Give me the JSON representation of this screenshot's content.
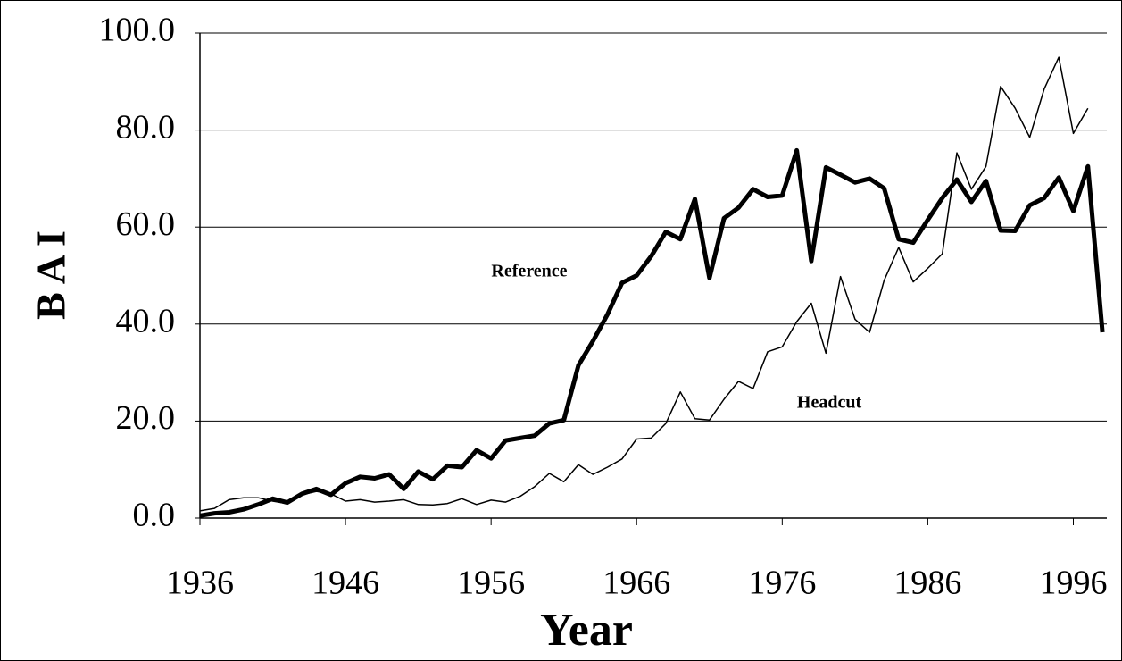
{
  "chart_data": {
    "type": "line",
    "x_label": "Year",
    "y_label": "B A I",
    "annotations": [
      "Reference",
      "Headcut"
    ],
    "x": [
      1936,
      1937,
      1938,
      1939,
      1940,
      1941,
      1942,
      1943,
      1944,
      1945,
      1946,
      1947,
      1948,
      1949,
      1950,
      1951,
      1952,
      1953,
      1954,
      1955,
      1956,
      1957,
      1958,
      1959,
      1960,
      1961,
      1962,
      1963,
      1964,
      1965,
      1966,
      1967,
      1968,
      1969,
      1970,
      1971,
      1972,
      1973,
      1974,
      1975,
      1976,
      1977,
      1978,
      1979,
      1980,
      1981,
      1982,
      1983,
      1984,
      1985,
      1986,
      1987,
      1988,
      1989,
      1990,
      1991,
      1992,
      1993,
      1994,
      1995,
      1996,
      1997,
      1998
    ],
    "series": [
      {
        "name": "Reference",
        "color": "#000000",
        "width": 5,
        "values": [
          0.5,
          1.0,
          1.2,
          1.8,
          2.8,
          4.0,
          3.2,
          5.0,
          6.0,
          4.8,
          7.2,
          8.5,
          8.2,
          9.0,
          6.0,
          9.6,
          8.0,
          10.8,
          10.5,
          14.0,
          12.3,
          16.0,
          16.5,
          17.0,
          19.5,
          20.2,
          31.5,
          36.5,
          42.0,
          48.5,
          50.0,
          54.0,
          59.0,
          57.5,
          65.8,
          49.5,
          61.8,
          64.0,
          67.8,
          66.2,
          66.5,
          75.8,
          53.0,
          72.3,
          70.8,
          69.2,
          70.0,
          68.0,
          57.5,
          56.8,
          61.5,
          66.0,
          69.8,
          65.2,
          69.5,
          59.3,
          59.2,
          64.5,
          66.0,
          70.2,
          63.3,
          72.5,
          38.3
        ]
      },
      {
        "name": "Headcut",
        "color": "#000000",
        "width": 1.5,
        "values": [
          1.5,
          2.0,
          3.8,
          4.2,
          4.2,
          3.5,
          3.0,
          4.8,
          5.5,
          5.0,
          3.5,
          3.8,
          3.3,
          3.5,
          3.8,
          2.8,
          2.7,
          3.0,
          4.0,
          2.8,
          3.7,
          3.3,
          4.5,
          6.5,
          9.2,
          7.5,
          11.0,
          9.0,
          10.5,
          12.2,
          16.3,
          16.5,
          19.5,
          26.0,
          20.5,
          20.2,
          24.5,
          28.2,
          26.7,
          34.3,
          35.3,
          40.5,
          44.3,
          34.0,
          49.8,
          41.0,
          38.3,
          49.0,
          55.8,
          48.7,
          51.5,
          54.5,
          75.3,
          67.8,
          72.5,
          89.0,
          84.5,
          78.5,
          88.5,
          95.0,
          79.3,
          84.5,
          null
        ]
      }
    ],
    "xlim": [
      1936,
      1998.3
    ],
    "xticks": [
      1936,
      1946,
      1956,
      1966,
      1976,
      1986,
      1996
    ],
    "ylim": [
      0,
      100
    ],
    "yticks": [
      {
        "value": 0,
        "label": "0.0"
      },
      {
        "value": 20,
        "label": "20.0"
      },
      {
        "value": 40,
        "label": "40.0"
      },
      {
        "value": 60,
        "label": "60.0"
      },
      {
        "value": 80,
        "label": "80.0"
      },
      {
        "value": 100,
        "label": "100.0"
      }
    ],
    "grid": true
  }
}
